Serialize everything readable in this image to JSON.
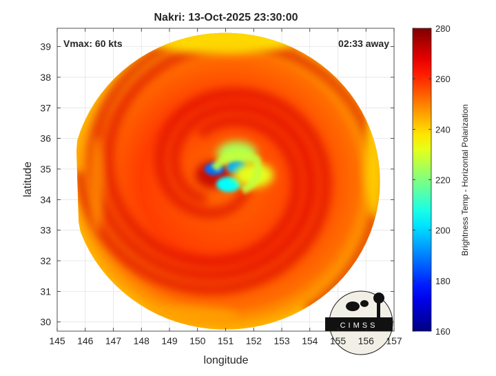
{
  "title": "Nakri: 13-Oct-2025 23:30:00",
  "xlabel": "longitude",
  "ylabel": "latitude",
  "colorbar_label": "Brightness Temp - Horizontal Polarization",
  "annotations": {
    "vmax": "Vmax: 60 kts",
    "away": "02:33 away"
  },
  "logo_text": "CIMSS",
  "colors": {
    "background_swath": "#1c3fe6",
    "grid": "#e3e3e3",
    "axis": "#262626"
  },
  "chart_data": {
    "type": "heatmap",
    "title": "Nakri: 13-Oct-2025 23:30:00",
    "xlabel": "longitude",
    "ylabel": "latitude",
    "xlim": [
      145,
      157
    ],
    "ylim": [
      29.7,
      39.6
    ],
    "xticks": [
      145,
      146,
      147,
      148,
      149,
      150,
      151,
      152,
      153,
      154,
      155,
      156,
      157
    ],
    "yticks": [
      30,
      31,
      32,
      33,
      34,
      35,
      36,
      37,
      38,
      39
    ],
    "grid": true,
    "colorbar": {
      "label": "Brightness Temp - Horizontal Polarization",
      "range": [
        160,
        280
      ],
      "ticks": [
        160,
        180,
        200,
        220,
        240,
        260,
        280
      ],
      "colormap": "jet"
    },
    "storm_center": {
      "lon": 150.9,
      "lat": 34.9
    },
    "swath": {
      "center": {
        "lon": 151.0,
        "lat": 34.6
      },
      "radius_deg_lon": 5.5,
      "radius_deg_lat": 4.85,
      "cutoff_west_lon": 145.7
    },
    "features": [
      {
        "name": "eyewall-warm-band-north",
        "lon": 151.4,
        "lat": 35.5,
        "tb": 225
      },
      {
        "name": "eyewall-hot-spot-west",
        "lon": 150.6,
        "lat": 35.0,
        "tb": 188
      },
      {
        "name": "eyewall-hot-spot-north",
        "lon": 151.4,
        "lat": 35.05,
        "tb": 195
      },
      {
        "name": "eyewall-hot-spot-south",
        "lon": 151.1,
        "lat": 34.5,
        "tb": 205
      },
      {
        "name": "inner-core-band-east",
        "lon": 152.0,
        "lat": 34.8,
        "tb": 232
      },
      {
        "name": "cold-sector-northwest",
        "lon": 149.8,
        "lat": 37.5,
        "tb": 268
      },
      {
        "name": "edge-cyan-north",
        "lon": 150.8,
        "lat": 39.2,
        "tb": 238
      },
      {
        "name": "edge-cyan-east",
        "lon": 156.2,
        "lat": 35.0,
        "tb": 240
      }
    ]
  }
}
